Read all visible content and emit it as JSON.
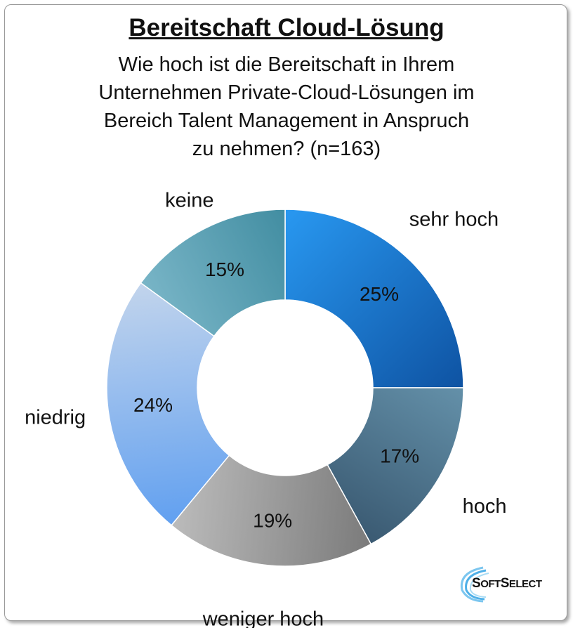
{
  "chart_data": {
    "type": "pie",
    "variant": "donut",
    "title": "Bereitschaft Cloud-Lösung",
    "subtitle": "Wie hoch ist die Bereitschaft in Ihrem Unternehmen Private-Cloud-Lösungen im Bereich Talent Management in Anspruch zu nehmen?  (n=163)",
    "categories": [
      "sehr hoch",
      "hoch",
      "weniger hoch",
      "niedrig",
      "keine"
    ],
    "values": [
      25,
      17,
      19,
      24,
      15
    ],
    "value_labels": [
      "25%",
      "17%",
      "19%",
      "24%",
      "15%"
    ],
    "colors": [
      [
        "#2a9cf5",
        "#0d4f9e"
      ],
      [
        "#6f9fb8",
        "#2f4b63"
      ],
      [
        "#6e6e6e",
        "#c8c8c8"
      ],
      [
        "#5a9cf0",
        "#c9d8ec"
      ],
      [
        "#8cc3d4",
        "#2e7f94"
      ]
    ]
  },
  "subtitle_lines": [
    "Wie hoch ist die Bereitschaft in Ihrem",
    "Unternehmen Private-Cloud-Lösungen im",
    "Bereich Talent Management in Anspruch",
    "zu nehmen?  (n=163)"
  ],
  "logo": "SoftSelect"
}
